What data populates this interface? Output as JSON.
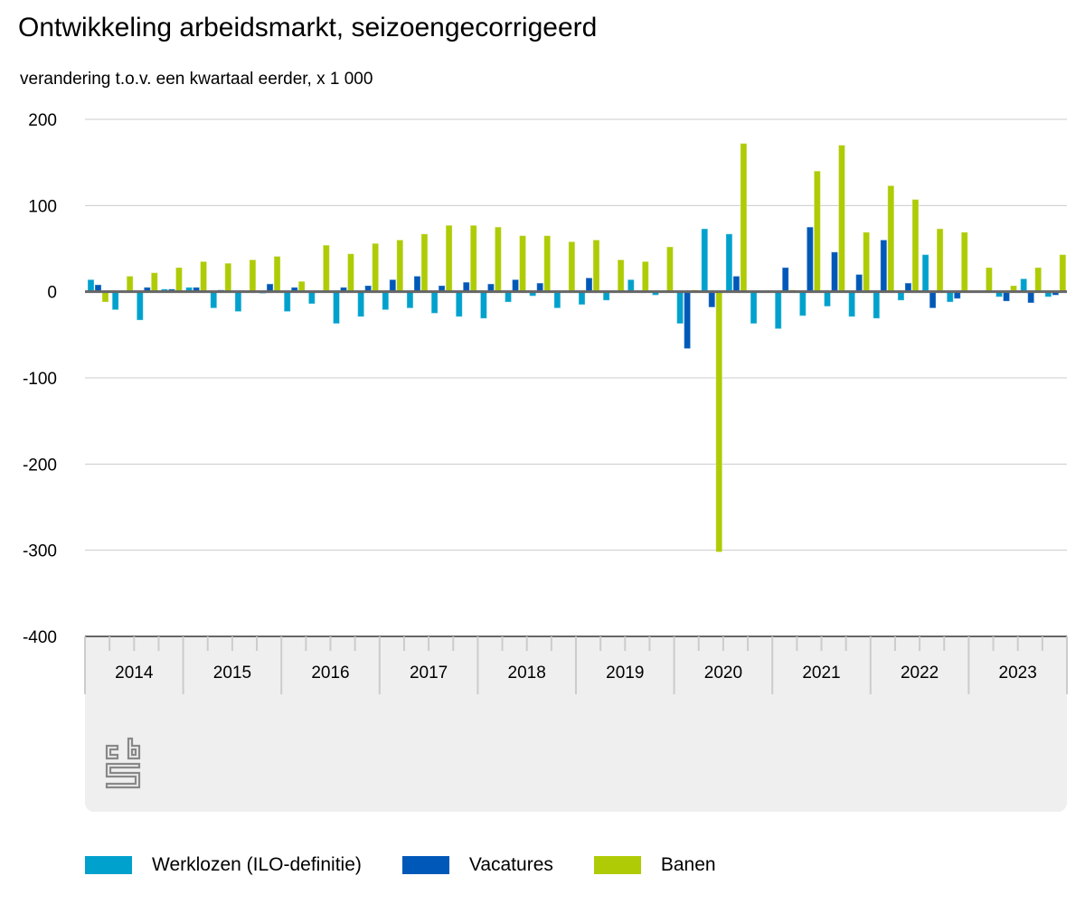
{
  "title": "Ontwikkeling arbeidsmarkt, seizoengecorrigeerd",
  "subtitle": "verandering t.o.v. een kwartaal eerder, x 1 000",
  "colors": {
    "werklozen": "#00a1cd",
    "vacatures": "#0058b8",
    "banen": "#afcb05",
    "grid": "#cccccc",
    "zeroline": "#666666",
    "axis_bg": "#efefef",
    "logo": "#888888"
  },
  "logo": "cbs",
  "chart_data": {
    "type": "bar",
    "title": "Ontwikkeling arbeidsmarkt, seizoengecorrigeerd",
    "subtitle": "verandering t.o.v. een kwartaal eerder, x 1 000",
    "xlabel": "",
    "ylabel": "",
    "ylim": [
      -400,
      200
    ],
    "yticks": [
      "200",
      "100",
      "0",
      "-100",
      "-200",
      "-300",
      "-400"
    ],
    "ytick_values": [
      200,
      100,
      0,
      -100,
      -200,
      -300,
      -400
    ],
    "years": [
      "2014",
      "2015",
      "2016",
      "2017",
      "2018",
      "2019",
      "2020",
      "2021",
      "2022",
      "2023"
    ],
    "categories": [
      "2014 Q1",
      "2014 Q2",
      "2014 Q3",
      "2014 Q4",
      "2015 Q1",
      "2015 Q2",
      "2015 Q3",
      "2015 Q4",
      "2016 Q1",
      "2016 Q2",
      "2016 Q3",
      "2016 Q4",
      "2017 Q1",
      "2017 Q2",
      "2017 Q3",
      "2017 Q4",
      "2018 Q1",
      "2018 Q2",
      "2018 Q3",
      "2018 Q4",
      "2019 Q1",
      "2019 Q2",
      "2019 Q3",
      "2019 Q4",
      "2020 Q1",
      "2020 Q2",
      "2020 Q3",
      "2020 Q4",
      "2021 Q1",
      "2021 Q2",
      "2021 Q3",
      "2021 Q4",
      "2022 Q1",
      "2022 Q2",
      "2022 Q3",
      "2022 Q4",
      "2023 Q1",
      "2023 Q2",
      "2023 Q3",
      "2023 Q4"
    ],
    "grid": true,
    "legend_position": "bottom",
    "series": [
      {
        "name": "Werklozen (ILO-definitie)",
        "key": "werklozen",
        "values": [
          14,
          -21,
          -33,
          3,
          5,
          -19,
          -23,
          -2,
          -23,
          -14,
          -37,
          -29,
          -21,
          -19,
          -25,
          -29,
          -31,
          -12,
          -5,
          -19,
          -15,
          -10,
          14,
          -4,
          -37,
          73,
          67,
          -37,
          -43,
          -28,
          -17,
          -29,
          -31,
          -10,
          43,
          -12,
          -1,
          -6,
          15,
          -6
        ]
      },
      {
        "name": "Vacatures",
        "key": "vacatures",
        "values": [
          8,
          0,
          5,
          3,
          5,
          2,
          0,
          9,
          5,
          1,
          5,
          7,
          14,
          18,
          7,
          11,
          9,
          14,
          10,
          0,
          16,
          0,
          0,
          0,
          -66,
          -18,
          18,
          0,
          28,
          75,
          46,
          20,
          60,
          10,
          -19,
          -8,
          0,
          -11,
          -13,
          -4
        ]
      },
      {
        "name": "Banen",
        "key": "banen",
        "values": [
          -12,
          18,
          22,
          28,
          35,
          33,
          37,
          41,
          12,
          54,
          44,
          56,
          60,
          67,
          77,
          77,
          75,
          65,
          65,
          58,
          60,
          37,
          35,
          52,
          2,
          -302,
          172,
          0,
          2,
          140,
          170,
          69,
          123,
          107,
          73,
          69,
          28,
          7,
          28,
          43
        ]
      }
    ]
  }
}
